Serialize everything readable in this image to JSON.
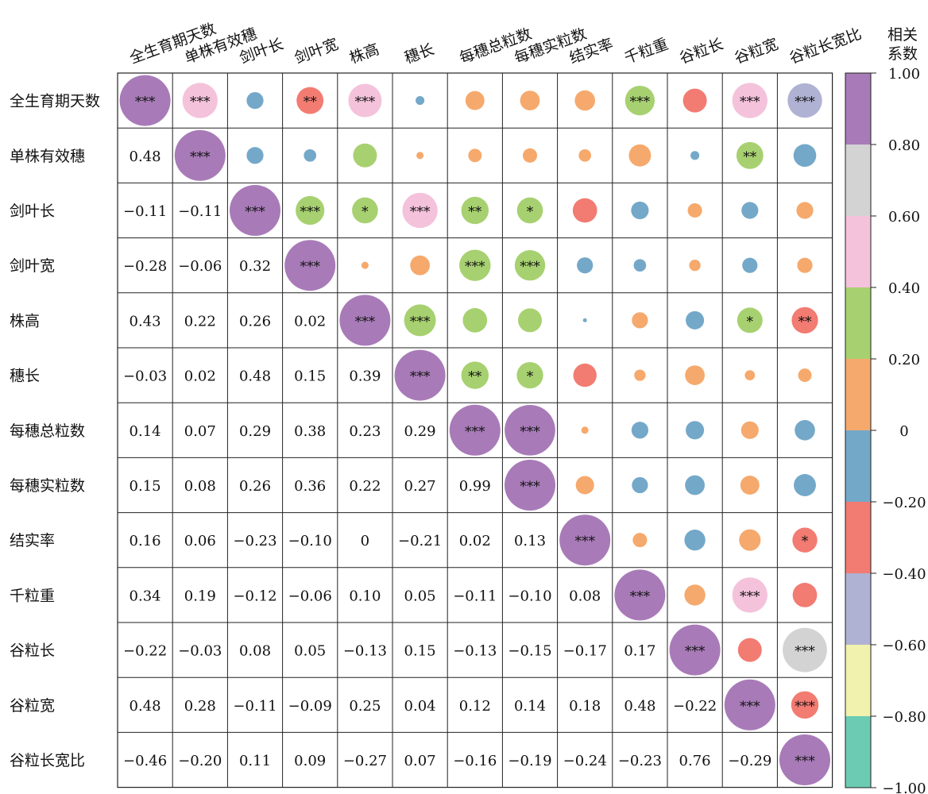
{
  "chart_data": {
    "type": "heatmap",
    "variables": [
      "全生育期天数",
      "单株有效穗",
      "剑叶长",
      "剑叶宽",
      "株高",
      "穗长",
      "每穗总粒数",
      "每穗实粒数",
      "结实率",
      "千粒重",
      "谷粒长",
      "谷粒宽",
      "谷粒长宽比"
    ],
    "lower_labels": [
      [],
      [
        "0.48"
      ],
      [
        "−0.11",
        "−0.11"
      ],
      [
        "−0.28",
        "−0.06",
        "0.32"
      ],
      [
        "0.43",
        "0.22",
        "0.26",
        "0.02"
      ],
      [
        "−0.03",
        "0.02",
        "0.48",
        "0.15",
        "0.39"
      ],
      [
        "0.14",
        "0.07",
        "0.29",
        "0.38",
        "0.23",
        "0.29"
      ],
      [
        "0.15",
        "0.08",
        "0.26",
        "0.36",
        "0.22",
        "0.27",
        "0.99"
      ],
      [
        "0.16",
        "0.06",
        "−0.23",
        "−0.10",
        "0",
        "−0.21",
        "0.02",
        "0.13"
      ],
      [
        "0.34",
        "0.19",
        "−0.12",
        "−0.06",
        "0.10",
        "0.05",
        "−0.11",
        "−0.10",
        "0.08"
      ],
      [
        "−0.22",
        "−0.03",
        "0.08",
        "0.05",
        "−0.13",
        "0.15",
        "−0.13",
        "−0.15",
        "−0.17",
        "0.17"
      ],
      [
        "0.48",
        "0.28",
        "−0.11",
        "−0.09",
        "0.25",
        "0.04",
        "0.12",
        "0.14",
        "0.18",
        "0.48",
        "−0.22"
      ],
      [
        "−0.46",
        "−0.20",
        "0.11",
        "0.09",
        "−0.27",
        "0.07",
        "−0.16",
        "−0.19",
        "−0.24",
        "−0.23",
        "0.76",
        "−0.29"
      ]
    ],
    "upper_significance": [
      [
        "***",
        "***",
        "",
        "**",
        "***",
        "",
        "",
        "",
        "",
        "***",
        "",
        "***",
        "***"
      ],
      [
        "",
        "***",
        "",
        "",
        "",
        "",
        "",
        "",
        "",
        "",
        "",
        "**",
        ""
      ],
      [
        "",
        "",
        "***",
        "***",
        "*",
        "***",
        "**",
        "*",
        "",
        "",
        "",
        "",
        ""
      ],
      [
        "",
        "",
        "",
        "***",
        "",
        "",
        "***",
        "***",
        "",
        "",
        "",
        "",
        ""
      ],
      [
        "",
        "",
        "",
        "",
        "***",
        "***",
        "",
        "",
        "",
        "",
        "",
        "*",
        "**"
      ],
      [
        "",
        "",
        "",
        "",
        "",
        "***",
        "**",
        "*",
        "",
        "",
        "",
        "",
        ""
      ],
      [
        "",
        "",
        "",
        "",
        "",
        "",
        "***",
        "***",
        "",
        "",
        "",
        "",
        ""
      ],
      [
        "",
        "",
        "",
        "",
        "",
        "",
        "",
        "***",
        "",
        "",
        "",
        "",
        ""
      ],
      [
        "",
        "",
        "",
        "",
        "",
        "",
        "",
        "",
        "***",
        "",
        "",
        "",
        "*"
      ],
      [
        "",
        "",
        "",
        "",
        "",
        "",
        "",
        "",
        "",
        "***",
        "",
        "***",
        ""
      ],
      [
        "",
        "",
        "",
        "",
        "",
        "",
        "",
        "",
        "",
        "",
        "***",
        "",
        "***"
      ],
      [
        "",
        "",
        "",
        "",
        "",
        "",
        "",
        "",
        "",
        "",
        "",
        "***",
        "***"
      ],
      [
        "",
        "",
        "",
        "",
        "",
        "",
        "",
        "",
        "",
        "",
        "",
        "",
        "***"
      ]
    ],
    "colorbar": {
      "title_lines": [
        "相关",
        "系数"
      ],
      "range": [
        -1.0,
        1.0
      ],
      "tick_labels": [
        "1.00",
        "0.80",
        "0.60",
        "0.40",
        "0.20",
        "0",
        "−0.20",
        "−0.40",
        "−0.60",
        "−0.80",
        "−1.00"
      ],
      "bins_top_to_bottom": [
        "#a87bb8",
        "#d3d3d3",
        "#f4c2db",
        "#a7d170",
        "#f6a96c",
        "#74a8c9",
        "#f27b72",
        "#b0b2d3",
        "#f0f2ad",
        "#6ccbb3"
      ]
    }
  }
}
